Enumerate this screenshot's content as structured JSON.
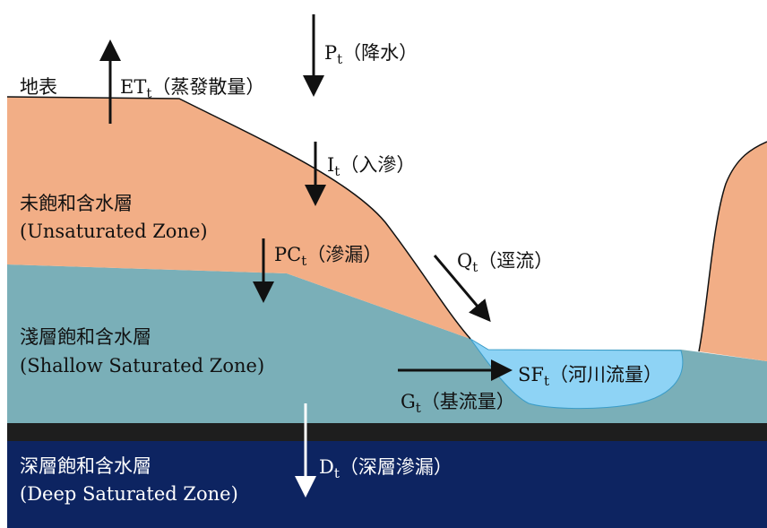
{
  "colors": {
    "unsaturated": "#F2AE86",
    "shallow": "#7AAFB8",
    "bedrock": "#1E1E1E",
    "deep": "#0D2461",
    "river": "#8ED3F5",
    "arrow": "#111111",
    "arrow_deep": "#ffffff"
  },
  "labels": {
    "surface": "地表",
    "et_main": "ET",
    "et_sub": "t",
    "et_note": "（蒸發散量）",
    "p_main": "P",
    "p_sub": "t",
    "p_note": "（降水）",
    "i_main": "I",
    "i_sub": "t",
    "i_note": "（入滲）",
    "unsat_zh": "未飽和含水層",
    "unsat_en": "(Unsaturated Zone)",
    "pc_main": "PC",
    "pc_sub": "t",
    "pc_note": "（滲漏）",
    "q_main": "Q",
    "q_sub": "t",
    "q_note": "（逕流）",
    "shallow_zh": "淺層飽和含水層",
    "shallow_en": "(Shallow Saturated Zone)",
    "sf_main": "SF",
    "sf_sub": "t",
    "sf_note": "（河川流量）",
    "g_main": "G",
    "g_sub": "t",
    "g_note": "（基流量）",
    "deep_zh": "深層飽和含水層",
    "deep_en": "(Deep Saturated Zone)",
    "d_main": "D",
    "d_sub": "t",
    "d_note": "（深層滲漏）"
  }
}
